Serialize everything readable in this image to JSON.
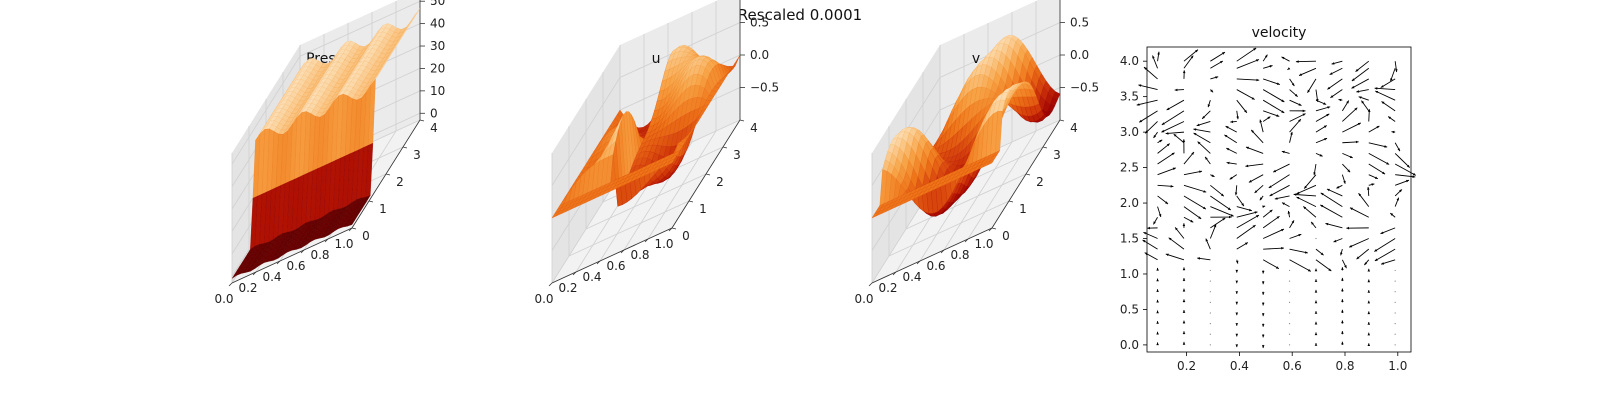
{
  "figure": {
    "suptitle": "Rescaled 0.0001"
  },
  "colors": {
    "pane": "#f2f2f2",
    "grid": "#d0d0d0",
    "axis": "#333333",
    "colormap": [
      "#5a0000",
      "#a00000",
      "#d23a0a",
      "#ee7518",
      "#f7a548",
      "#fbd7a6",
      "#ffffff"
    ]
  },
  "chart_data": [
    {
      "type": "surface3d",
      "title": "Pressure",
      "x_ticks": [
        "0.0",
        "0.2",
        "0.4",
        "0.6",
        "0.8",
        "1.0"
      ],
      "y_ticks": [
        "0",
        "1",
        "2",
        "3",
        "4"
      ],
      "z_ticks": [
        "0",
        "10",
        "20",
        "30",
        "40",
        "50"
      ],
      "xlim": [
        0,
        1
      ],
      "ylim": [
        0,
        4
      ],
      "zlim": [
        -3,
        55
      ],
      "surface": "pressure"
    },
    {
      "type": "surface3d",
      "title": "u",
      "x_ticks": [
        "0.0",
        "0.2",
        "0.4",
        "0.6",
        "0.8",
        "1.0"
      ],
      "y_ticks": [
        "0",
        "1",
        "2",
        "3",
        "4"
      ],
      "z_ticks": [
        "−0.5",
        "0.0",
        "0.5"
      ],
      "xlim": [
        0,
        1
      ],
      "ylim": [
        0,
        4
      ],
      "zlim": [
        -1,
        1
      ],
      "surface": "u"
    },
    {
      "type": "surface3d",
      "title": "v",
      "x_ticks": [
        "0.0",
        "0.2",
        "0.4",
        "0.6",
        "0.8",
        "1.0"
      ],
      "y_ticks": [
        "0",
        "1",
        "2",
        "3",
        "4"
      ],
      "z_ticks": [
        "−0.5",
        "0.0",
        "0.5"
      ],
      "xlim": [
        0,
        1
      ],
      "ylim": [
        0,
        4
      ],
      "zlim": [
        -1,
        1
      ],
      "surface": "v"
    },
    {
      "type": "quiver",
      "title": "velocity",
      "x_ticks": [
        "0.2",
        "0.4",
        "0.6",
        "0.8",
        "1.0"
      ],
      "y_ticks": [
        "0.0",
        "0.5",
        "1.0",
        "1.5",
        "2.0",
        "2.5",
        "3.0",
        "3.5",
        "4.0"
      ],
      "xlim": [
        0.05,
        1.05
      ],
      "ylim": [
        -0.1,
        4.2
      ],
      "grid_x": [
        0.09,
        0.19,
        0.29,
        0.39,
        0.49,
        0.59,
        0.69,
        0.79,
        0.89,
        0.99
      ],
      "grid_y": [
        0.0,
        0.15,
        0.3,
        0.45,
        0.6,
        0.75,
        0.9,
        1.05,
        1.2,
        1.35,
        1.5,
        1.65,
        1.8,
        1.95,
        2.1,
        2.25,
        2.4,
        2.55,
        2.7,
        2.85,
        3.0,
        3.15,
        3.3,
        3.45,
        3.6,
        3.75,
        3.9,
        4.0
      ],
      "field": "synthetic"
    }
  ]
}
